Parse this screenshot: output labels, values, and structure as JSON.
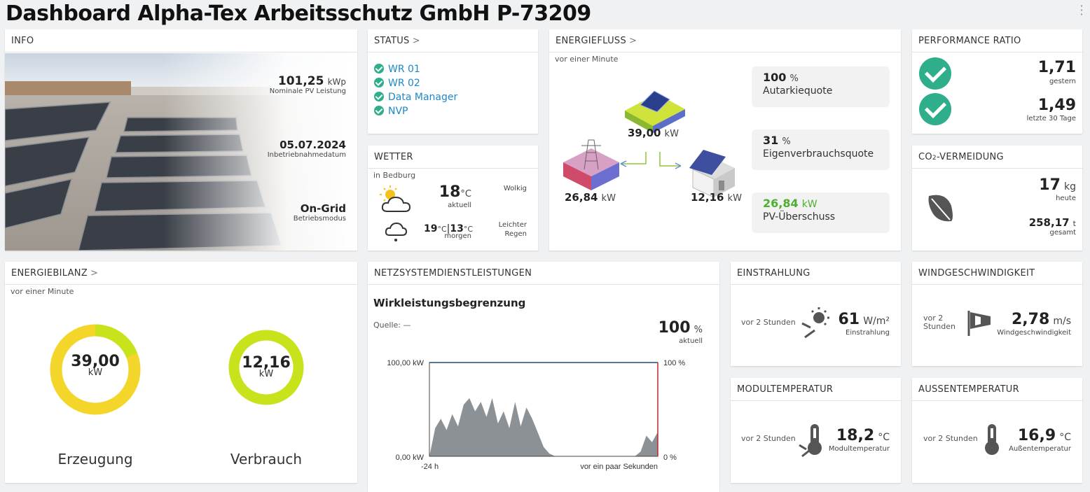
{
  "page": {
    "title": "Dashboard Alpha-Tex Arbeitsschutz GmbH P-73209"
  },
  "info": {
    "header": "INFO",
    "kwp_value": "101,25",
    "kwp_unit": "kWp",
    "kwp_label": "Nominale PV Leistung",
    "date_value": "05.07.2024",
    "date_label": "Inbetriebnahmedatum",
    "mode_value": "On-Grid",
    "mode_label": "Betriebsmodus"
  },
  "status": {
    "header": "STATUS",
    "items": [
      "WR 01",
      "WR 02",
      "Data Manager",
      "NVP"
    ]
  },
  "wetter": {
    "header": "WETTER",
    "location": "in Bedburg",
    "today_temp": "18",
    "today_unit": "°C",
    "today_label": "aktuell",
    "today_desc": "Wolkig",
    "tomorrow_high": "19",
    "tomorrow_low": "13",
    "tomorrow_unit": "°C",
    "tomorrow_label": "morgen",
    "tomorrow_desc_1": "Leichter",
    "tomorrow_desc_2": "Regen"
  },
  "energiefluss": {
    "header": "ENERGIEFLUSS",
    "timestamp": "vor einer Minute",
    "pv_value": "39,00",
    "grid_value": "26,84",
    "house_value": "12,16",
    "unit": "kW",
    "autarkie_value": "100",
    "autarkie_unit": "%",
    "autarkie_label": "Autarkiequote",
    "eigen_value": "31",
    "eigen_unit": "%",
    "eigen_label": "Eigenverbrauchsquote",
    "ueberschuss_value": "26,84",
    "ueberschuss_unit": "kW",
    "ueberschuss_label": "PV-Überschuss",
    "accent": "#4caf2e"
  },
  "performance": {
    "header": "PERFORMANCE RATIO",
    "yesterday_value": "1,71",
    "yesterday_label": "gestern",
    "month_value": "1,49",
    "month_label": "letzte 30 Tage"
  },
  "co2": {
    "header_prefix": "CO",
    "header_sub": "2",
    "header_suffix": "-VERMEIDUNG",
    "today_value": "17",
    "today_unit": "kg",
    "today_label": "heute",
    "total_value": "258,17",
    "total_unit": "t",
    "total_label": "gesamt"
  },
  "energiebilanz": {
    "header": "ENERGIEBILANZ",
    "timestamp": "vor einer Minute",
    "erzeugung_value": "39,00",
    "erzeugung_unit": "kW",
    "erzeugung_label": "Erzeugung",
    "erzeugung_share": 0.81,
    "verbrauch_value": "12,16",
    "verbrauch_unit": "kW",
    "verbrauch_label": "Verbrauch",
    "verbrauch_share": 1.0,
    "color_yellow": "#f4d52a",
    "color_green": "#c8e21c"
  },
  "netz": {
    "header": "NETZSYSTEMDIENSTLEISTUNGEN",
    "title": "Wirkleistungsbegrenzung",
    "source_label": "Quelle: —",
    "current_value": "100",
    "current_unit": "%",
    "current_label": "aktuell",
    "y_top_left": "100,00 kW",
    "y_bottom_left": "0,00 kW",
    "y_top_right": "100 %",
    "y_bottom_right": "0 %",
    "x_start": "-24 h",
    "x_end": "vor ein paar Sekunden"
  },
  "chart_data": {
    "type": "area",
    "title": "Wirkleistungsbegrenzung",
    "xlabel": "",
    "ylabel": "",
    "ylim": [
      0,
      100
    ],
    "x": [
      0.0,
      0.6,
      1.2,
      1.8,
      2.4,
      3.0,
      3.6,
      4.2,
      4.8,
      5.4,
      6.0,
      6.6,
      7.2,
      7.8,
      8.4,
      9.0,
      9.6,
      10.2,
      10.8,
      11.4,
      12.0,
      12.6,
      13.2,
      13.8,
      14.4,
      15.0,
      15.6,
      16.2,
      16.8,
      17.4,
      18.0,
      18.6,
      19.2,
      19.8,
      20.4,
      21.0,
      21.6,
      22.2,
      22.8,
      23.4,
      24.0
    ],
    "series": [
      {
        "name": "",
        "values": [
          0,
          30,
          40,
          28,
          45,
          32,
          55,
          62,
          48,
          58,
          42,
          62,
          35,
          48,
          30,
          58,
          32,
          52,
          40,
          25,
          10,
          3,
          0,
          0,
          0,
          0,
          0,
          0,
          0,
          0,
          0,
          0,
          0,
          0,
          0,
          0,
          0,
          5,
          22,
          15,
          26
        ]
      }
    ],
    "limit_percent": 100,
    "color_fill": "#8b9195",
    "color_limit": "#1a4e7a",
    "color_now": "#c0282d"
  },
  "einstrahlung": {
    "header": "EINSTRAHLUNG",
    "timestamp": "vor 2 Stunden",
    "value": "61",
    "unit": "W/m²",
    "label": "Einstrahlung"
  },
  "wind": {
    "header": "WINDGESCHWINDIGKEIT",
    "timestamp_1": "vor 2",
    "timestamp_2": "Stunden",
    "value": "2,78",
    "unit": "m/s",
    "label": "Windgeschwindigkeit"
  },
  "modultemp": {
    "header": "MODULTEMPERATUR",
    "timestamp": "vor 2 Stunden",
    "value": "18,2",
    "unit": "°C",
    "label": "Modultemperatur"
  },
  "aussentemp": {
    "header": "AUSSENTEMPERATUR",
    "timestamp": "vor 2 Stunden",
    "value": "16,9",
    "unit": "°C",
    "label": "Außentemperatur"
  }
}
